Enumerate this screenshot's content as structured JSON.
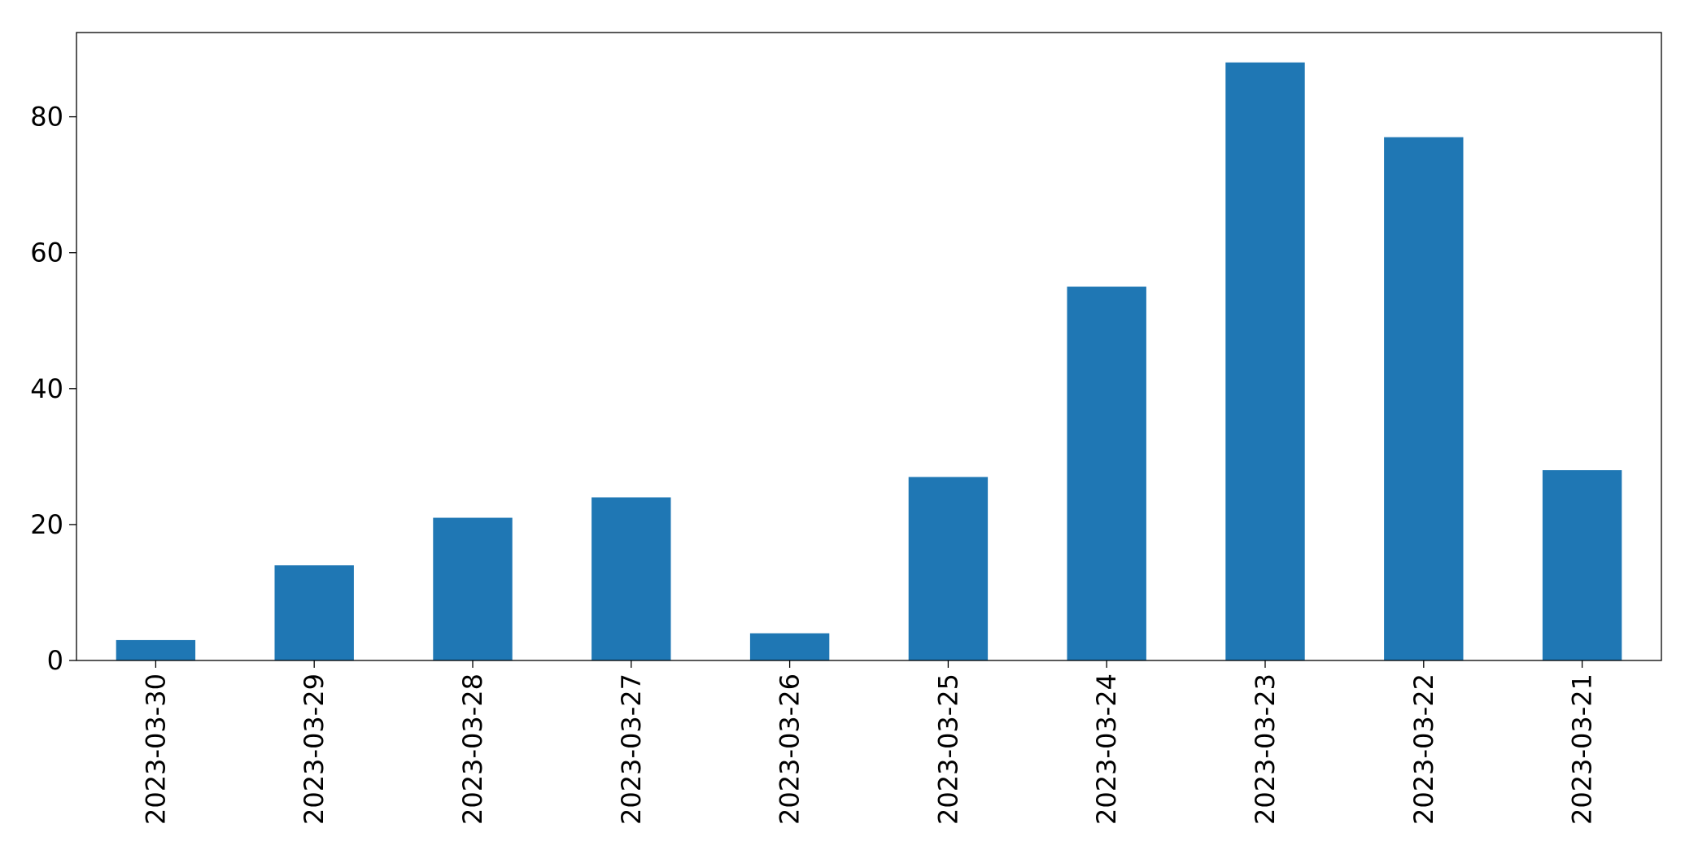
{
  "chart_data": {
    "type": "bar",
    "categories": [
      "2023-03-30",
      "2023-03-29",
      "2023-03-28",
      "2023-03-27",
      "2023-03-26",
      "2023-03-25",
      "2023-03-24",
      "2023-03-23",
      "2023-03-22",
      "2023-03-21"
    ],
    "values": [
      3,
      14,
      21,
      24,
      4,
      27,
      55,
      88,
      77,
      28
    ],
    "color": "#1f77b4",
    "ylim": [
      0,
      92.4
    ],
    "yticks": [
      0,
      20,
      40,
      60,
      80
    ],
    "grid": false
  }
}
